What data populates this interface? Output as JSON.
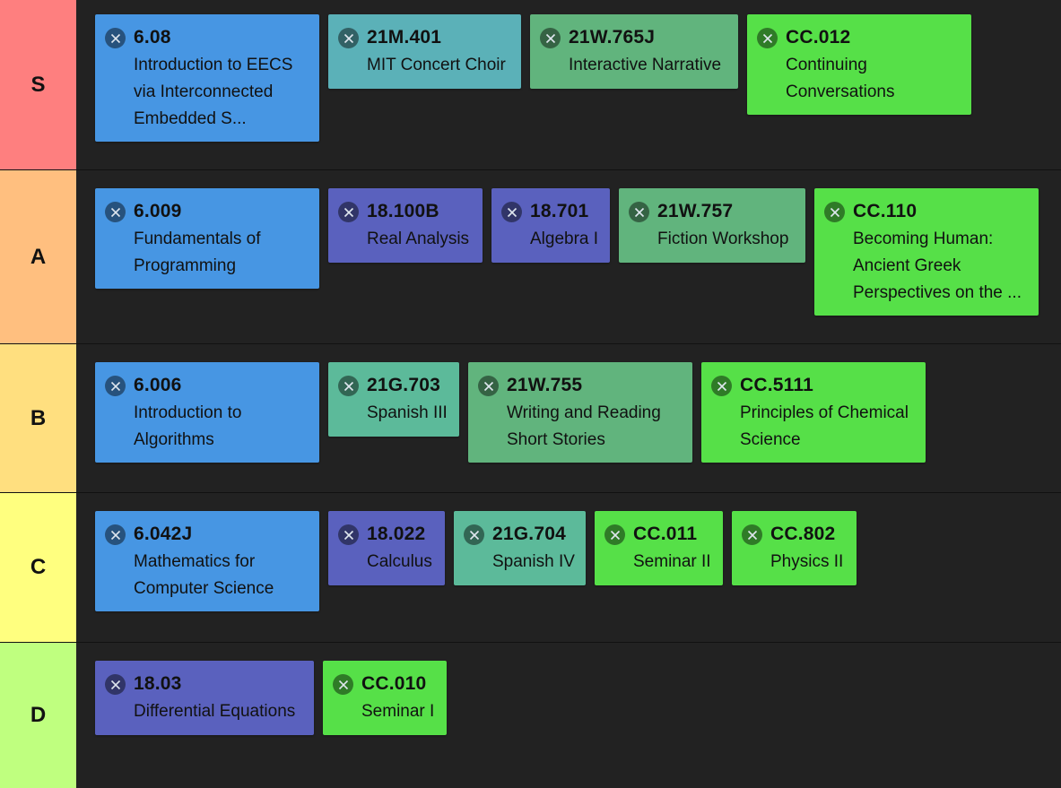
{
  "tiers": [
    {
      "label": "S",
      "color": "#fe7f7f",
      "cards": [
        {
          "code": "6.08",
          "title": "Introduction to EECS via Interconnected Embedded S...",
          "color": "#4796e3"
        },
        {
          "code": "21M.401",
          "title": "MIT Concert Choir",
          "color": "#5bb1b8"
        },
        {
          "code": "21W.765J",
          "title": "Interactive Narrative",
          "color": "#61b47d"
        },
        {
          "code": "CC.012",
          "title": "Continuing Conversations",
          "color": "#56e048"
        }
      ]
    },
    {
      "label": "A",
      "color": "#ffbf7f",
      "cards": [
        {
          "code": "6.009",
          "title": "Fundamentals of Programming",
          "color": "#4796e3"
        },
        {
          "code": "18.100B",
          "title": "Real Analysis",
          "color": "#5a61be"
        },
        {
          "code": "18.701",
          "title": "Algebra I",
          "color": "#5a61be"
        },
        {
          "code": "21W.757",
          "title": "Fiction Workshop",
          "color": "#61b47d"
        },
        {
          "code": "CC.110",
          "title": "Becoming Human: Ancient Greek Perspectives on the ...",
          "color": "#56e048"
        }
      ]
    },
    {
      "label": "B",
      "color": "#ffdf7f",
      "cards": [
        {
          "code": "6.006",
          "title": "Introduction to Algorithms",
          "color": "#4796e3"
        },
        {
          "code": "21G.703",
          "title": "Spanish III",
          "color": "#5cba9a"
        },
        {
          "code": "21W.755",
          "title": "Writing and Reading Short Stories",
          "color": "#61b47d"
        },
        {
          "code": "CC.5111",
          "title": "Principles of Chemical Science",
          "color": "#56e048"
        }
      ]
    },
    {
      "label": "C",
      "color": "#ffff7f",
      "cards": [
        {
          "code": "6.042J",
          "title": "Mathematics for Computer Science",
          "color": "#4796e3"
        },
        {
          "code": "18.022",
          "title": "Calculus",
          "color": "#5a61be"
        },
        {
          "code": "21G.704",
          "title": "Spanish IV",
          "color": "#5cba9a"
        },
        {
          "code": "CC.011",
          "title": "Seminar II",
          "color": "#56e048"
        },
        {
          "code": "CC.802",
          "title": "Physics II",
          "color": "#56e048"
        }
      ]
    },
    {
      "label": "D",
      "color": "#bfff7f",
      "cards": [
        {
          "code": "18.03",
          "title": "Differential Equations",
          "color": "#5a61be"
        },
        {
          "code": "CC.010",
          "title": "Seminar I",
          "color": "#56e048"
        }
      ]
    }
  ],
  "icons": {
    "remove": "close-circle-icon"
  }
}
